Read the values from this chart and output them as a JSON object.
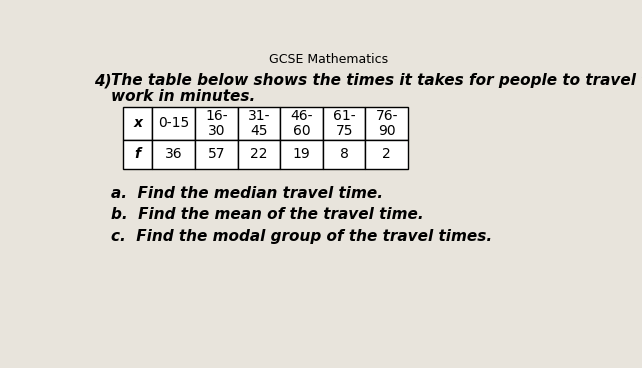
{
  "title": "GCSE Mathematics",
  "question_prefix": "4)",
  "question_line1": "The table below shows the times it takes for people to travel to",
  "question_line2": "work in minutes.",
  "table_headers_x": [
    "x",
    "0-15",
    "16-\n30",
    "31-\n45",
    "46-\n60",
    "61-\n75",
    "76-\n90"
  ],
  "table_headers_f": [
    "f",
    "36",
    "57",
    "22",
    "19",
    "8",
    "2"
  ],
  "parts": [
    "a.  Find the median travel time.",
    "b.  Find the mean of the travel time.",
    "c.  Find the modal group of the travel times."
  ],
  "bg_color": "#e8e4dc",
  "table_bg": "#ffffff",
  "text_color": "#000000",
  "title_fontsize": 9,
  "question_fontsize": 11,
  "table_fontsize": 10,
  "parts_fontsize": 11
}
